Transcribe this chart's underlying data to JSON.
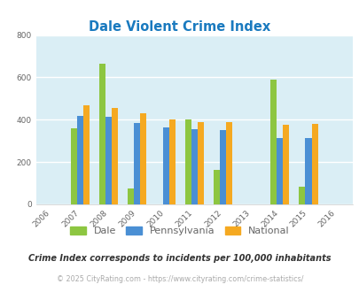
{
  "title": "Dale Violent Crime Index",
  "title_color": "#1a7abf",
  "years": [
    2006,
    2007,
    2008,
    2009,
    2010,
    2011,
    2012,
    2013,
    2014,
    2015,
    2016
  ],
  "dale": [
    0,
    360,
    665,
    75,
    0,
    400,
    165,
    0,
    590,
    85,
    0
  ],
  "pennsylvania": [
    0,
    420,
    415,
    385,
    365,
    355,
    350,
    0,
    315,
    315,
    0
  ],
  "national": [
    0,
    470,
    455,
    430,
    400,
    390,
    390,
    0,
    375,
    380,
    0
  ],
  "ylim": [
    0,
    800
  ],
  "yticks": [
    0,
    200,
    400,
    600,
    800
  ],
  "bar_width": 0.22,
  "dale_color": "#8dc641",
  "penn_color": "#4a8fd4",
  "national_color": "#f5a921",
  "bg_color": "#daeef5",
  "grid_color": "#ffffff",
  "subtitle": "Crime Index corresponds to incidents per 100,000 inhabitants",
  "subtitle_color": "#333333",
  "footer": "© 2025 CityRating.com - https://www.cityrating.com/crime-statistics/",
  "footer_color": "#aaaaaa",
  "tick_label_color": "#666666",
  "legend_labels": [
    "Dale",
    "Pennsylvania",
    "National"
  ]
}
